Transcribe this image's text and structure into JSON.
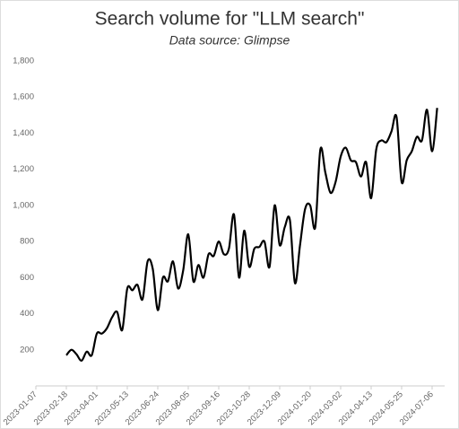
{
  "chart_data": {
    "type": "line",
    "title": "Search volume for \"LLM search\"",
    "subtitle": "Data source: Glimpse",
    "categories": [
      "2023-01-07",
      null,
      null,
      null,
      null,
      null,
      "2023-02-18",
      null,
      null,
      null,
      null,
      null,
      "2023-04-01",
      null,
      null,
      null,
      null,
      null,
      "2023-05-13",
      null,
      null,
      null,
      null,
      null,
      "2023-06-24",
      null,
      null,
      null,
      null,
      null,
      "2023-08-05",
      null,
      null,
      null,
      null,
      null,
      "2023-09-16",
      null,
      null,
      null,
      null,
      null,
      "2023-10-28",
      null,
      null,
      null,
      null,
      null,
      "2023-12-09",
      null,
      null,
      null,
      null,
      null,
      "2024-01-20",
      null,
      null,
      null,
      null,
      null,
      "2024-03-02",
      null,
      null,
      null,
      null,
      null,
      "2024-04-13",
      null,
      null,
      null,
      null,
      null,
      "2024-05-25",
      null,
      null,
      null,
      null,
      null,
      "2024-07-06",
      null
    ],
    "values": [
      null,
      null,
      null,
      null,
      null,
      null,
      170,
      200,
      175,
      140,
      190,
      170,
      290,
      290,
      320,
      380,
      410,
      310,
      540,
      530,
      560,
      480,
      690,
      650,
      420,
      600,
      580,
      690,
      540,
      640,
      840,
      580,
      670,
      600,
      730,
      720,
      800,
      730,
      760,
      950,
      600,
      860,
      660,
      760,
      770,
      800,
      660,
      1000,
      780,
      880,
      920,
      570,
      780,
      980,
      1000,
      880,
      1310,
      1180,
      1070,
      1130,
      1270,
      1320,
      1250,
      1240,
      1160,
      1240,
      1040,
      1310,
      1360,
      1350,
      1410,
      1490,
      1130,
      1250,
      1300,
      1380,
      1360,
      1530,
      1300,
      1540
    ],
    "color": "#000000",
    "ylim": [
      0,
      1800
    ],
    "yticks": [
      200,
      400,
      600,
      800,
      {
        "value": 1000,
        "label": "1,000"
      },
      {
        "value": 1200,
        "label": "1,200"
      },
      {
        "value": 1400,
        "label": "1,400"
      },
      {
        "value": 1600,
        "label": "1,600"
      },
      {
        "value": 1800,
        "label": "1,800"
      }
    ]
  }
}
